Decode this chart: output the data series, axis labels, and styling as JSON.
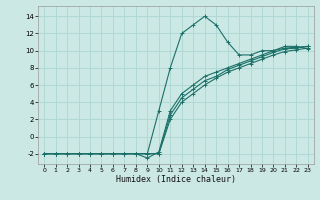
{
  "xlabel": "Humidex (Indice chaleur)",
  "bg_color": "#cce8e4",
  "grid_color": "#b0d8d4",
  "line_color": "#1a7068",
  "xlim": [
    -0.5,
    23.5
  ],
  "ylim": [
    -3.2,
    15.2
  ],
  "yticks": [
    -2,
    0,
    2,
    4,
    6,
    8,
    10,
    12,
    14
  ],
  "xticks": [
    0,
    1,
    2,
    3,
    4,
    5,
    6,
    7,
    8,
    9,
    10,
    11,
    12,
    13,
    14,
    15,
    16,
    17,
    18,
    19,
    20,
    21,
    22,
    23
  ],
  "series": [
    {
      "x": [
        0,
        1,
        2,
        3,
        4,
        5,
        6,
        7,
        8,
        9,
        10,
        11,
        12,
        13,
        14,
        15,
        16,
        17,
        18,
        19,
        20,
        21,
        22,
        23
      ],
      "y": [
        -2,
        -2,
        -2,
        -2,
        -2,
        -2,
        -2,
        -2,
        -2,
        -2,
        3.0,
        8.0,
        12.0,
        13.0,
        14.0,
        13.0,
        11.0,
        9.5,
        9.5,
        10.0,
        10.0,
        10.5,
        10.5,
        10.2
      ]
    },
    {
      "x": [
        0,
        1,
        2,
        3,
        4,
        5,
        6,
        7,
        8,
        9,
        10,
        11,
        12,
        13,
        14,
        15,
        16,
        17,
        18,
        19,
        20,
        21,
        22,
        23
      ],
      "y": [
        -2,
        -2,
        -2,
        -2,
        -2,
        -2,
        -2,
        -2,
        -2,
        -2,
        -2.0,
        2.5,
        4.5,
        5.5,
        6.5,
        7.0,
        7.8,
        8.3,
        8.8,
        9.3,
        9.8,
        10.2,
        10.3,
        10.5
      ]
    },
    {
      "x": [
        0,
        1,
        2,
        3,
        4,
        5,
        6,
        7,
        8,
        9,
        10,
        11,
        12,
        13,
        14,
        15,
        16,
        17,
        18,
        19,
        20,
        21,
        22,
        23
      ],
      "y": [
        -2,
        -2,
        -2,
        -2,
        -2,
        -2,
        -2,
        -2,
        -2,
        -2,
        -2.0,
        2.0,
        4.0,
        5.0,
        6.0,
        6.8,
        7.5,
        8.0,
        8.5,
        9.0,
        9.5,
        9.9,
        10.1,
        10.3
      ]
    },
    {
      "x": [
        0,
        1,
        2,
        3,
        4,
        5,
        6,
        7,
        8,
        9,
        10,
        11,
        12,
        13,
        14,
        15,
        16,
        17,
        18,
        19,
        20,
        21,
        22,
        23
      ],
      "y": [
        -2,
        -2,
        -2,
        -2,
        -2,
        -2,
        -2,
        -2,
        -2,
        -2.5,
        -1.8,
        3.0,
        5.0,
        6.0,
        7.0,
        7.5,
        8.0,
        8.5,
        9.0,
        9.5,
        10.0,
        10.3,
        10.4,
        10.5
      ]
    }
  ]
}
